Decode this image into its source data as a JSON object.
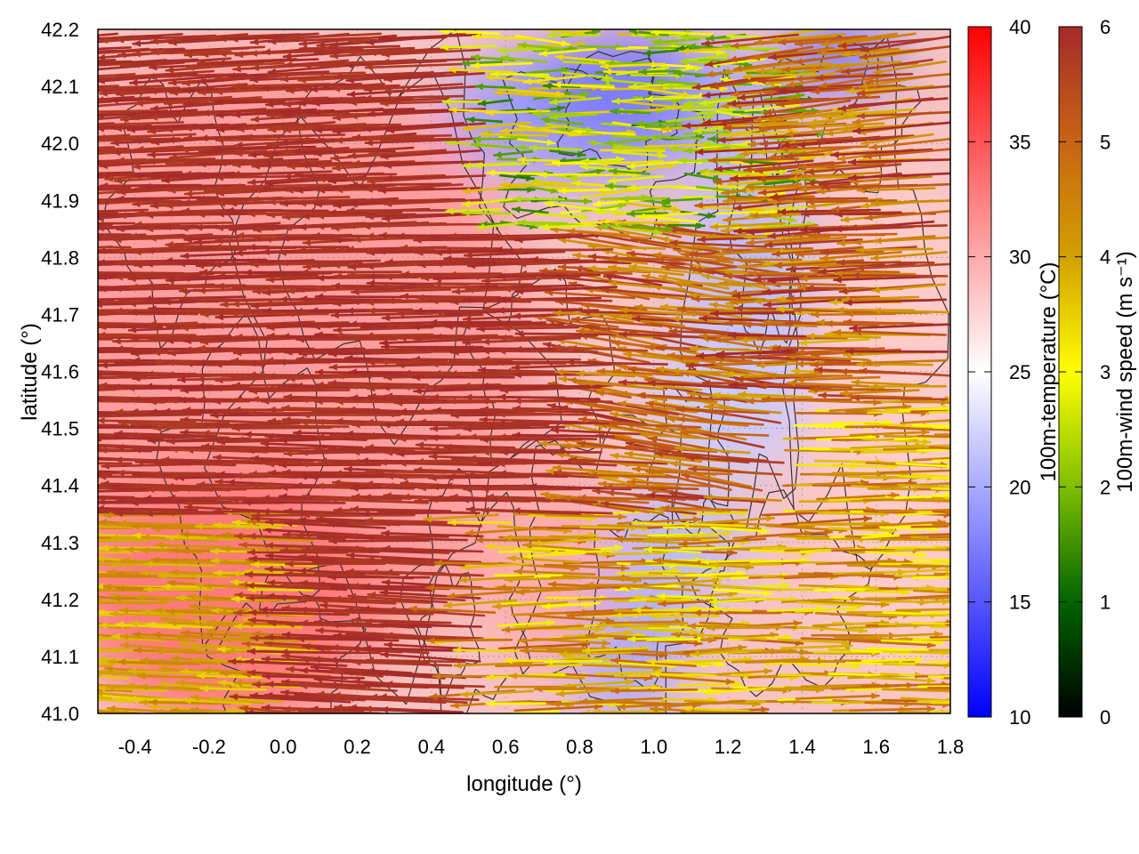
{
  "chart_data": {
    "type": "heatmap",
    "xlabel": "longitude (°)",
    "ylabel": "latitude (°)",
    "xlim": [
      -0.5,
      1.8
    ],
    "ylim": [
      41.0,
      42.2
    ],
    "x_ticks": [
      -0.4,
      -0.2,
      0.0,
      0.2,
      0.4,
      0.6,
      0.8,
      1.0,
      1.2,
      1.4,
      1.6,
      1.8
    ],
    "y_ticks": [
      41.0,
      41.1,
      41.2,
      41.3,
      41.4,
      41.5,
      41.6,
      41.7,
      41.8,
      41.9,
      42.0,
      42.1,
      42.2
    ],
    "grid": "dotted",
    "temperature_colorbar": {
      "label": "100m-temperature (°C)",
      "range": [
        10,
        40
      ],
      "ticks": [
        10,
        15,
        20,
        25,
        30,
        35,
        40
      ],
      "colors": [
        "#0000ff",
        "#ffffff",
        "#ff0000"
      ]
    },
    "wind_colorbar": {
      "label": "100m-wind speed (m s⁻¹)",
      "range": [
        0,
        6
      ],
      "ticks": [
        0,
        1,
        2,
        3,
        4,
        5,
        6
      ],
      "colors": [
        "#000000",
        "#006400",
        "#7fbf00",
        "#ffff00",
        "#d2a000",
        "#c86414",
        "#a52a2a"
      ]
    },
    "temperature_regions": [
      {
        "area": "west (-0.5 to 0.5)",
        "temp_c": 31
      },
      {
        "area": "southwest lowlands",
        "temp_c": 33
      },
      {
        "area": "north-central (0.6 to 1.0, 41.9 to 42.2)",
        "temp_c": 19
      },
      {
        "area": "east-central (1.1 to 1.4, 41.3 to 42.0)",
        "temp_c": 21
      },
      {
        "area": "south-central (0.8 to 1.0, 41.0 to 41.3)",
        "temp_c": 20
      },
      {
        "area": "east (1.5 to 1.8)",
        "temp_c": 28
      }
    ],
    "wind_regions": [
      {
        "area": "west and center",
        "direction": "westward",
        "speed_ms": 6
      },
      {
        "area": "north-central highlands",
        "direction": "mixed",
        "speed_ms": 2.5
      },
      {
        "area": "east lowlands",
        "direction": "eastward",
        "speed_ms": 4
      },
      {
        "area": "southwest corner",
        "direction": "westward",
        "speed_ms": 4
      }
    ]
  }
}
